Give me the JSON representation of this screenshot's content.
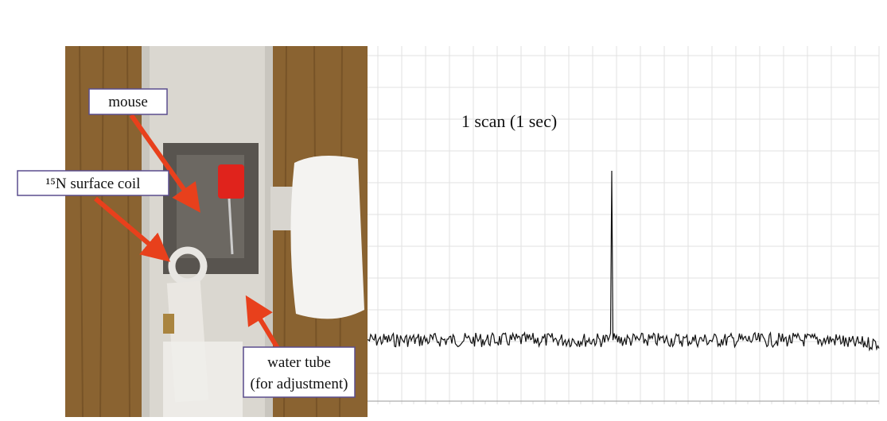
{
  "labels": {
    "mouse": "mouse",
    "coil": "¹⁵N surface coil",
    "water_tube": [
      "water tube",
      "(for adjustment)"
    ]
  },
  "spectrum": {
    "caption": "1 scan (1 sec)"
  }
}
